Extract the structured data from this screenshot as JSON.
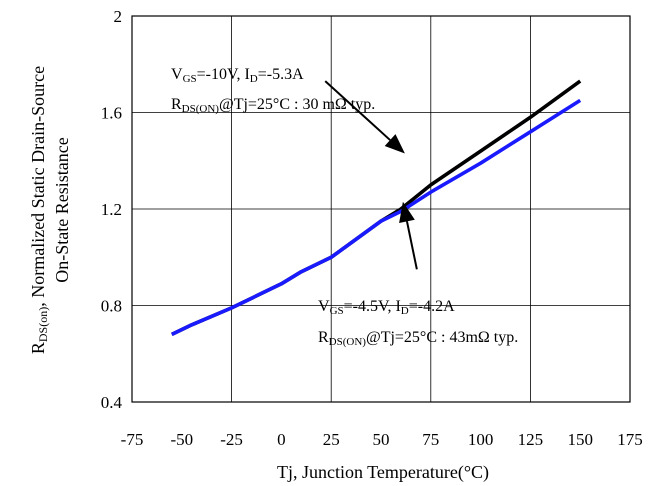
{
  "chart_data": {
    "type": "line",
    "title": "",
    "xlabel": "Tj, Junction Temperature(°C)",
    "ylabel_line1_main": "R",
    "ylabel_line1_sub": "DS(on)",
    "ylabel_line1_rest": ", Normalized Static Drain-Source",
    "ylabel_line2": "On-State Resistance",
    "xlim": [
      -75,
      175
    ],
    "ylim": [
      0.4,
      2
    ],
    "xticks": [
      -75,
      -50,
      -25,
      0,
      25,
      50,
      75,
      100,
      125,
      150,
      175
    ],
    "xtick_labels": [
      "-75",
      "-50",
      "-25",
      "0",
      "25",
      "50",
      "75",
      "100",
      "125",
      "150",
      "175"
    ],
    "yticks": [
      0.4,
      0.8,
      1.2,
      1.6,
      2
    ],
    "ytick_labels": [
      "0.4",
      "0.8",
      "1.2",
      "1.6",
      "2"
    ],
    "grid": true,
    "series": [
      {
        "color": "#000000",
        "x": [
          -55,
          -45,
          -25,
          0,
          10,
          25,
          50,
          60,
          75,
          100,
          125,
          150
        ],
        "y": [
          0.68,
          0.72,
          0.79,
          0.89,
          0.94,
          1.0,
          1.15,
          1.2,
          1.3,
          1.44,
          1.58,
          1.73
        ]
      },
      {
        "color": "#1a1aff",
        "x": [
          -55,
          -45,
          -25,
          0,
          10,
          25,
          50,
          60,
          75,
          100,
          125,
          150
        ],
        "y": [
          0.68,
          0.72,
          0.79,
          0.89,
          0.94,
          1.0,
          1.15,
          1.19,
          1.27,
          1.39,
          1.52,
          1.65
        ]
      }
    ],
    "annotations": [
      {
        "line1": [
          [
            "V",
            ""
          ],
          [
            "GS",
            "sub"
          ],
          [
            "=-10V, I",
            ""
          ],
          [
            "D",
            "sub"
          ],
          [
            "=-5.3A",
            ""
          ]
        ],
        "line2": [
          [
            "R",
            ""
          ],
          [
            "DS(ON)",
            "sub"
          ],
          [
            "@Tj=25°C : 30 mΩ typ.",
            ""
          ]
        ],
        "arrow_from": [
          22,
          1.73
        ],
        "arrow_to": [
          62,
          1.43
        ]
      },
      {
        "line1": [
          [
            "V",
            ""
          ],
          [
            "GS",
            "sub"
          ],
          [
            "=-4.5V, I",
            ""
          ],
          [
            "D",
            "sub"
          ],
          [
            "=-4.2A",
            ""
          ]
        ],
        "line2": [
          [
            "R",
            ""
          ],
          [
            "DS(ON)",
            "sub"
          ],
          [
            "@Tj=25°C : 43mΩ typ.",
            ""
          ]
        ],
        "arrow_from": [
          68,
          0.95
        ],
        "arrow_to": [
          61,
          1.23
        ]
      }
    ]
  }
}
